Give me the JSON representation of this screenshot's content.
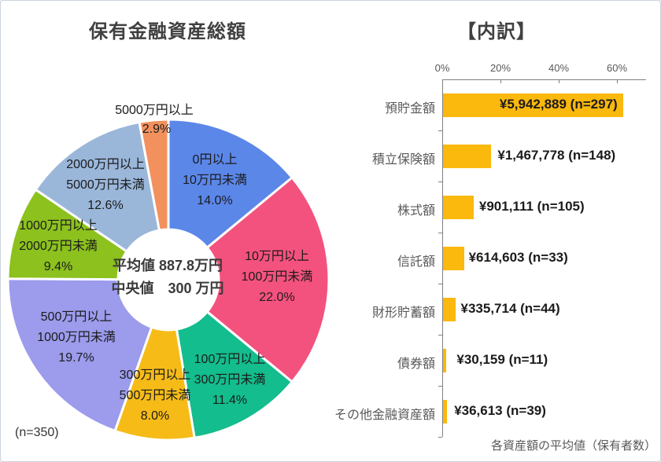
{
  "titles": {
    "left": "保有金融資産総額",
    "right": "【内訳】"
  },
  "chart_data": [
    {
      "type": "pie",
      "subtype": "donut",
      "title": "保有金融資産総額",
      "unit": "%",
      "categories": [
        "0円以上10万円未満",
        "10万円以上100万円未満",
        "100万円以上300万円未満",
        "300万円以上500万円未満",
        "500万円以上1000万円未満",
        "1000万円以上2000万円未満",
        "2000万円以上5000万円未満",
        "5000万円以上"
      ],
      "values": [
        14.0,
        22.0,
        11.4,
        8.0,
        19.7,
        9.4,
        12.6,
        2.9
      ],
      "colors": [
        "#5B87E9",
        "#F4527E",
        "#13BD8D",
        "#F6BB17",
        "#9C9BEC",
        "#8CC11E",
        "#9AB7DA",
        "#F2915E"
      ],
      "label_blocks": [
        [
          "0円以上",
          "10万円未満",
          "14.0%"
        ],
        [
          "10万円以上",
          "100万円未満",
          "22.0%"
        ],
        [
          "100万円以上",
          "300万円未満",
          "11.4%"
        ],
        [
          "300万円以上",
          "500万円未満",
          "8.0%"
        ],
        [
          "500万円以上",
          "1000万円未満",
          "19.7%"
        ],
        [
          "1000万円以上",
          "2000万円未満",
          "9.4%"
        ],
        [
          "2000万円以上",
          "5000万円未満",
          "12.6%"
        ],
        [
          "5000万円以上"
        ],
        [
          "2.9%"
        ]
      ],
      "center_lines": [
        "平均値 887.8万円",
        "中央値　300 万円"
      ],
      "mean_label": "平均値 887.8万円",
      "median_label": "中央値　300 万円",
      "note": "(n=350)",
      "start_angle": "top",
      "direction": "clockwise"
    },
    {
      "type": "bar",
      "title": "【内訳】",
      "orientation": "horizontal",
      "x_axis": {
        "tick_labels": [
          "0%",
          "20%",
          "40%",
          "60%"
        ],
        "tick_percents": [
          0,
          20,
          40,
          60
        ],
        "range": [
          0,
          70
        ]
      },
      "categories": [
        "預貯金額",
        "積立保険額",
        "株式額",
        "信託額",
        "財形貯蓄額",
        "債券額",
        "その他金融資産額"
      ],
      "values": [
        5942889,
        1467778,
        901111,
        614603,
        335714,
        30159,
        36613
      ],
      "n_counts": [
        297,
        148,
        105,
        33,
        44,
        11,
        39
      ],
      "bar_percents": [
        61.8,
        16.6,
        10.5,
        7.2,
        4.2,
        1.2,
        1.4
      ],
      "value_labels": [
        "¥5,942,889 (n=297)",
        "¥1,467,778 (n=148)",
        "¥901,111 (n=105)",
        "¥614,603 (n=33)",
        "¥335,714 (n=44)",
        "¥30,159 (n=11)",
        "¥36,613 (n=39)"
      ],
      "bar_color": "#FBB80D",
      "footnote": "各資産額の平均値（保有者数）",
      "grid": "off",
      "legend": "none"
    }
  ]
}
